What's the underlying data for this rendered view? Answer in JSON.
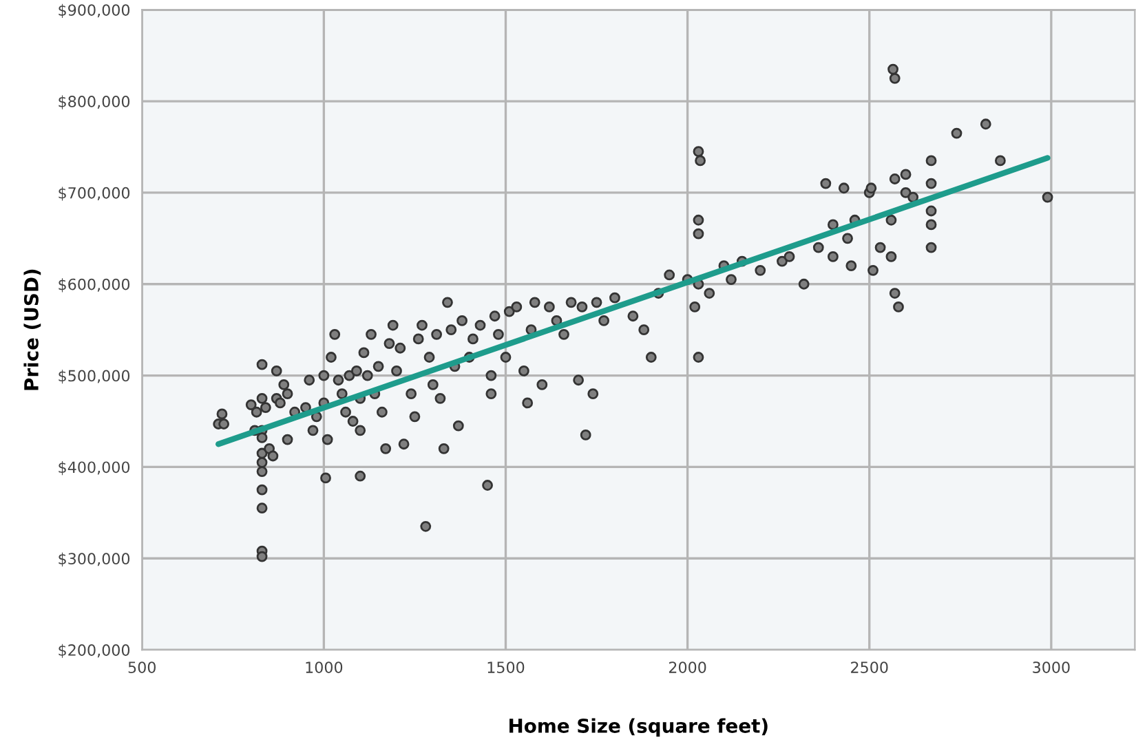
{
  "chart_data": {
    "type": "scatter",
    "xlabel": "Home Size (square feet)",
    "ylabel": "Price (USD)",
    "xlim": [
      500,
      3230
    ],
    "xticks": [
      500,
      1000,
      1500,
      2000,
      2500,
      3000
    ],
    "ylim": [
      200000,
      900000
    ],
    "yticks": [
      {
        "value": 200000,
        "label": "$200,000"
      },
      {
        "value": 300000,
        "label": "$300,000"
      },
      {
        "value": 400000,
        "label": "$400,000"
      },
      {
        "value": 500000,
        "label": "$500,000"
      },
      {
        "value": 600000,
        "label": "$600,000"
      },
      {
        "value": 700000,
        "label": "$700,000"
      },
      {
        "value": 800000,
        "label": "$800,000"
      },
      {
        "value": 900000,
        "label": "$900,000"
      }
    ],
    "grid": true,
    "marker": "circle",
    "series": [
      {
        "color": "#7f7f7f",
        "x": [
          710,
          720,
          725,
          800,
          810,
          815,
          830,
          830,
          830,
          830,
          830,
          830,
          830,
          830,
          830,
          830,
          830,
          840,
          850,
          860,
          870,
          870,
          880,
          890,
          900,
          900,
          920,
          950,
          960,
          970,
          980,
          1000,
          1000,
          1005,
          1010,
          1020,
          1030,
          1040,
          1050,
          1060,
          1070,
          1080,
          1090,
          1100,
          1100,
          1100,
          1110,
          1120,
          1130,
          1140,
          1150,
          1160,
          1170,
          1180,
          1190,
          1200,
          1210,
          1220,
          1240,
          1250,
          1260,
          1270,
          1280,
          1290,
          1300,
          1310,
          1320,
          1330,
          1340,
          1350,
          1360,
          1370,
          1380,
          1400,
          1410,
          1430,
          1450,
          1460,
          1460,
          1470,
          1480,
          1500,
          1510,
          1530,
          1550,
          1560,
          1570,
          1580,
          1600,
          1620,
          1640,
          1660,
          1680,
          1700,
          1710,
          1720,
          1740,
          1750,
          1770,
          1800,
          1850,
          1880,
          1900,
          1920,
          1950,
          2000,
          2020,
          2030,
          2035,
          2030,
          2030,
          2030,
          2030,
          2060,
          2100,
          2120,
          2150,
          2200,
          2260,
          2280,
          2320,
          2360,
          2380,
          2400,
          2400,
          2430,
          2440,
          2450,
          2460,
          2500,
          2505,
          2510,
          2530,
          2560,
          2560,
          2565,
          2570,
          2570,
          2570,
          2580,
          2600,
          2600,
          2620,
          2670,
          2670,
          2670,
          2670,
          2670,
          2740,
          2820,
          2860,
          2990
        ],
        "values": [
          447000,
          458000,
          447000,
          468000,
          440000,
          460000,
          512000,
          475000,
          440000,
          432000,
          415000,
          405000,
          395000,
          375000,
          355000,
          308000,
          302000,
          465000,
          420000,
          412000,
          505000,
          475000,
          470000,
          490000,
          480000,
          430000,
          460000,
          465000,
          495000,
          440000,
          455000,
          470000,
          500000,
          388000,
          430000,
          520000,
          545000,
          495000,
          480000,
          460000,
          500000,
          450000,
          505000,
          475000,
          440000,
          390000,
          525000,
          500000,
          545000,
          480000,
          510000,
          460000,
          420000,
          535000,
          555000,
          505000,
          530000,
          425000,
          480000,
          455000,
          540000,
          555000,
          335000,
          520000,
          490000,
          545000,
          475000,
          420000,
          580000,
          550000,
          510000,
          445000,
          560000,
          520000,
          540000,
          555000,
          380000,
          500000,
          480000,
          565000,
          545000,
          520000,
          570000,
          575000,
          505000,
          470000,
          550000,
          580000,
          490000,
          575000,
          560000,
          545000,
          580000,
          495000,
          575000,
          435000,
          480000,
          580000,
          560000,
          585000,
          565000,
          550000,
          520000,
          590000,
          610000,
          605000,
          575000,
          745000,
          735000,
          670000,
          655000,
          600000,
          520000,
          590000,
          620000,
          605000,
          625000,
          615000,
          625000,
          630000,
          600000,
          640000,
          710000,
          665000,
          630000,
          705000,
          650000,
          620000,
          670000,
          700000,
          705000,
          615000,
          640000,
          670000,
          630000,
          835000,
          825000,
          715000,
          590000,
          575000,
          720000,
          700000,
          695000,
          735000,
          710000,
          680000,
          665000,
          640000,
          765000,
          775000,
          735000,
          695000
        ]
      },
      {
        "type": "line",
        "color": "#1e9c8c",
        "marker": "none",
        "x": [
          710,
          2990
        ],
        "values": [
          425000,
          738000
        ]
      }
    ]
  }
}
